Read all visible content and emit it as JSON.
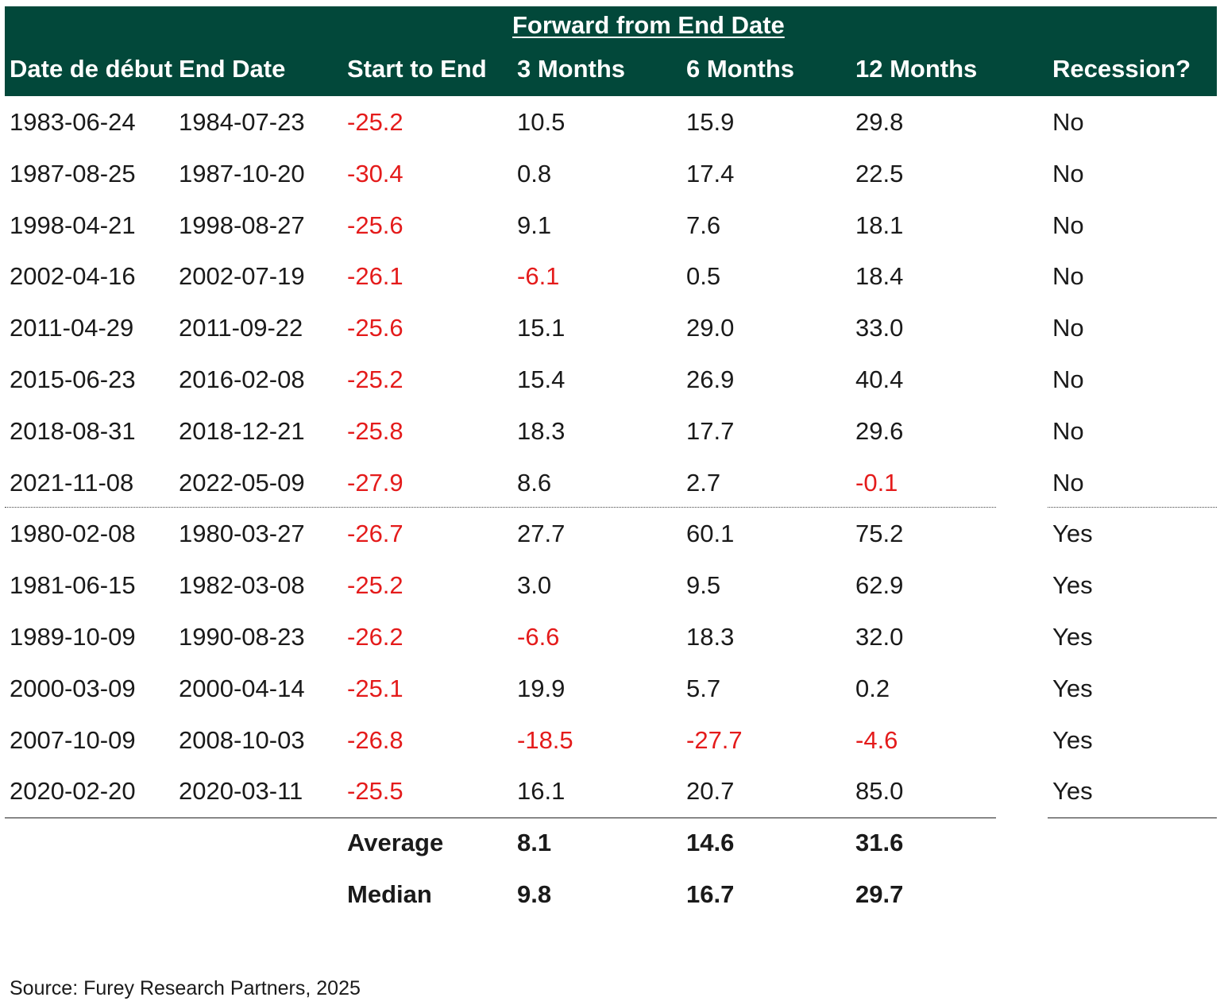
{
  "header": {
    "super_label": "Forward from End Date",
    "columns": [
      "Date de début",
      "End Date",
      "Start to End",
      "3 Months",
      "6 Months",
      "12 Months",
      "Recession?"
    ]
  },
  "rows": [
    [
      "1983-06-24",
      "1984-07-23",
      "-25.2",
      "10.5",
      "15.9",
      "29.8",
      "No"
    ],
    [
      "1987-08-25",
      "1987-10-20",
      "-30.4",
      "0.8",
      "17.4",
      "22.5",
      "No"
    ],
    [
      "1998-04-21",
      "1998-08-27",
      "-25.6",
      "9.1",
      "7.6",
      "18.1",
      "No"
    ],
    [
      "2002-04-16",
      "2002-07-19",
      "-26.1",
      "-6.1",
      "0.5",
      "18.4",
      "No"
    ],
    [
      "2011-04-29",
      "2011-09-22",
      "-25.6",
      "15.1",
      "29.0",
      "33.0",
      "No"
    ],
    [
      "2015-06-23",
      "2016-02-08",
      "-25.2",
      "15.4",
      "26.9",
      "40.4",
      "No"
    ],
    [
      "2018-08-31",
      "2018-12-21",
      "-25.8",
      "18.3",
      "17.7",
      "29.6",
      "No"
    ],
    [
      "2021-11-08",
      "2022-05-09",
      "-27.9",
      "8.6",
      "2.7",
      "-0.1",
      "No"
    ],
    [
      "1980-02-08",
      "1980-03-27",
      "-26.7",
      "27.7",
      "60.1",
      "75.2",
      "Yes"
    ],
    [
      "1981-06-15",
      "1982-03-08",
      "-25.2",
      "3.0",
      "9.5",
      "62.9",
      "Yes"
    ],
    [
      "1989-10-09",
      "1990-08-23",
      "-26.2",
      "-6.6",
      "18.3",
      "32.0",
      "Yes"
    ],
    [
      "2000-03-09",
      "2000-04-14",
      "-25.1",
      "19.9",
      "5.7",
      "0.2",
      "Yes"
    ],
    [
      "2007-10-09",
      "2008-10-03",
      "-26.8",
      "-18.5",
      "-27.7",
      "-4.6",
      "Yes"
    ],
    [
      "2020-02-20",
      "2020-03-11",
      "-25.5",
      "16.1",
      "20.7",
      "85.0",
      "Yes"
    ]
  ],
  "summary": [
    {
      "label": "Average",
      "values": [
        "8.1",
        "14.6",
        "31.6"
      ]
    },
    {
      "label": "Median",
      "values": [
        "9.8",
        "16.7",
        "29.7"
      ]
    }
  ],
  "source": "Source: Furey Research Partners, 2025",
  "colors": {
    "header_bg": "#02483a",
    "negative": "#e41b1b"
  }
}
